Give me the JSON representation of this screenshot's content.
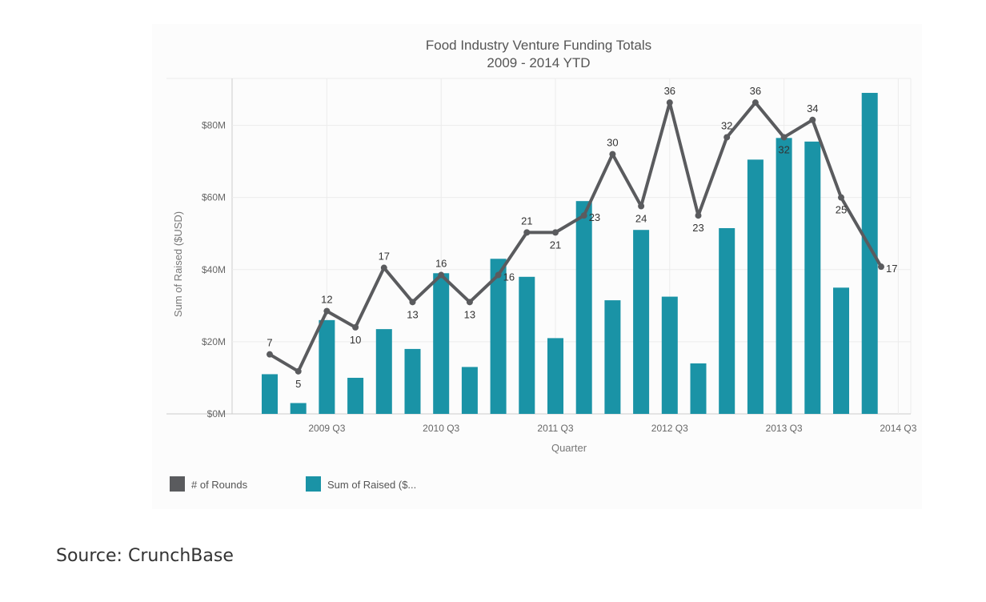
{
  "colors": {
    "bar": "#1a93a6",
    "line": "#5a5b5e",
    "grid": "#ececec",
    "axis": "#cccccc"
  },
  "chart_data": {
    "type": "bar",
    "title": "Food Industry Venture Funding Totals",
    "subtitle": "2009 - 2014 YTD",
    "xlabel": "Quarter",
    "ylabel": "Sum of Raised ($USD)",
    "ylim": [
      0,
      93
    ],
    "yticks": [
      {
        "value": 0,
        "label": "$0M"
      },
      {
        "value": 20,
        "label": "$20M"
      },
      {
        "value": 40,
        "label": "$40M"
      },
      {
        "value": 60,
        "label": "$60M"
      },
      {
        "value": 80,
        "label": "$80M"
      }
    ],
    "categories": [
      "2009 Q1",
      "2009 Q2",
      "2009 Q3",
      "2009 Q4",
      "2010 Q1",
      "2010 Q2",
      "2010 Q3",
      "2010 Q4",
      "2011 Q1",
      "2011 Q2",
      "2011 Q3",
      "2011 Q4",
      "2012 Q1",
      "2012 Q2",
      "2012 Q3",
      "2012 Q4",
      "2013 Q1",
      "2013 Q2",
      "2013 Q3",
      "2013 Q4",
      "2014 Q1",
      "2014 Q2",
      "2014 Q3"
    ],
    "category_count": 23,
    "xtick_labels": [
      {
        "index": 2,
        "label": "2009 Q3"
      },
      {
        "index": 6,
        "label": "2010 Q3"
      },
      {
        "index": 10,
        "label": "2011 Q3"
      },
      {
        "index": 14,
        "label": "2012 Q3"
      },
      {
        "index": 18,
        "label": "2013 Q3"
      },
      {
        "index": 22,
        "label": "2014 Q3"
      }
    ],
    "series": [
      {
        "name": "Sum of Raised ($USD)",
        "type": "bar",
        "values": [
          11,
          3,
          26,
          10,
          23.5,
          18,
          39,
          13,
          43,
          38,
          21,
          59,
          31.5,
          51,
          32.5,
          14,
          51.5,
          70.5,
          76.5,
          75.5,
          35,
          89,
          null
        ]
      },
      {
        "name": "# of Rounds",
        "type": "line",
        "values": [
          7,
          5,
          12,
          10,
          17,
          13,
          16,
          13,
          16,
          21,
          21,
          23,
          30,
          24,
          36,
          23,
          32,
          36,
          32,
          34,
          25,
          17
        ],
        "positions": [
          0,
          1,
          2,
          3,
          4,
          5,
          6,
          7,
          8,
          9,
          10,
          11,
          12,
          13,
          14,
          15,
          16,
          17,
          18,
          19,
          20,
          21.4
        ],
        "point_heights": [
          16.5,
          11.8,
          28.5,
          24,
          40.5,
          31,
          38.5,
          31,
          38.5,
          50.3,
          50.3,
          55,
          72,
          57.6,
          86.3,
          55,
          76.7,
          86.3,
          76.7,
          81.5,
          60,
          40.8
        ],
        "label_placement": [
          "above",
          "below",
          "above",
          "below",
          "above",
          "below",
          "above",
          "below",
          "right",
          "above",
          "below",
          "right",
          "above",
          "below",
          "above",
          "below",
          "above",
          "above",
          "below",
          "above",
          "below",
          "right"
        ]
      }
    ],
    "legend": [
      {
        "name": "# of Rounds",
        "label": "# of Rounds",
        "color": "#5a5b5e"
      },
      {
        "name": "Sum of Raised ($USD)",
        "label": "Sum of Raised ($...",
        "color": "#1a93a6"
      }
    ]
  },
  "source": "Source: CrunchBase"
}
